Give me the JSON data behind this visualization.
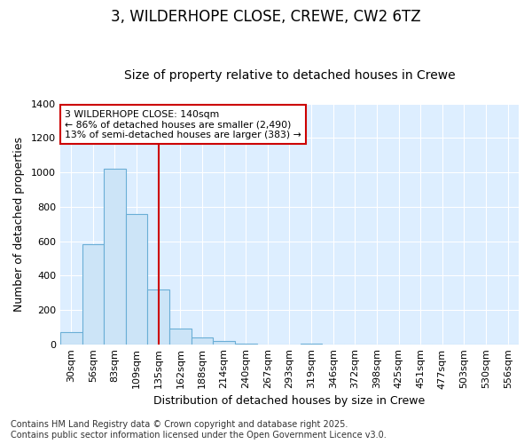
{
  "title": "3, WILDERHOPE CLOSE, CREWE, CW2 6TZ",
  "subtitle": "Size of property relative to detached houses in Crewe",
  "xlabel": "Distribution of detached houses by size in Crewe",
  "ylabel": "Number of detached properties",
  "categories": [
    "30sqm",
    "56sqm",
    "83sqm",
    "109sqm",
    "135sqm",
    "162sqm",
    "188sqm",
    "214sqm",
    "240sqm",
    "267sqm",
    "293sqm",
    "319sqm",
    "346sqm",
    "372sqm",
    "398sqm",
    "425sqm",
    "451sqm",
    "477sqm",
    "503sqm",
    "530sqm",
    "556sqm"
  ],
  "values": [
    70,
    580,
    1020,
    760,
    320,
    90,
    40,
    20,
    5,
    0,
    0,
    5,
    0,
    0,
    0,
    0,
    0,
    0,
    0,
    0,
    0
  ],
  "bar_color": "#cce4f7",
  "bar_edge_color": "#6aaed6",
  "vline_index": 4,
  "vline_color": "#cc0000",
  "annotation_text": "3 WILDERHOPE CLOSE: 140sqm\n← 86% of detached houses are smaller (2,490)\n13% of semi-detached houses are larger (383) →",
  "bg_color": "#ffffff",
  "plot_bg_color": "#ddeeff",
  "grid_color": "#ffffff",
  "footer": "Contains HM Land Registry data © Crown copyright and database right 2025.\nContains public sector information licensed under the Open Government Licence v3.0.",
  "ylim": [
    0,
    1400
  ],
  "title_fontsize": 12,
  "subtitle_fontsize": 10,
  "label_fontsize": 9,
  "tick_fontsize": 8,
  "footer_fontsize": 7
}
